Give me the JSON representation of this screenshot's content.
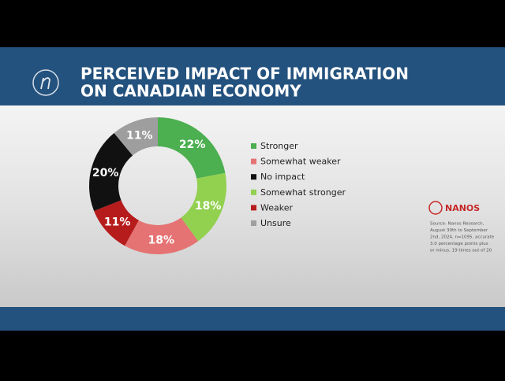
{
  "header": {
    "title_lines": [
      "PERCEIVED IMPACT OF IMMIGRATION",
      "ON CANADIAN ECONOMY"
    ]
  },
  "chart_data": {
    "type": "donut",
    "categories": [
      "Stronger",
      "Somewhat stronger",
      "Somewhat weaker",
      "Weaker",
      "No impact",
      "Unsure"
    ],
    "values": [
      22,
      18,
      18,
      11,
      20,
      11
    ],
    "value_labels": [
      "22%",
      "18%",
      "18%",
      "11%",
      "20%",
      "11%"
    ],
    "colors": [
      "#4caf50",
      "#92d050",
      "#e57373",
      "#b71c1c",
      "#111111",
      "#9e9e9e"
    ],
    "legend": [
      "Stronger",
      "Somewhat weaker",
      "No impact",
      "Somewhat stronger",
      "Weaker",
      "Unsure"
    ]
  },
  "branding": {
    "logo": "NANOS",
    "source": [
      "Source: Nanos Research,",
      "August 30th to September",
      "2nd, 2024, n=1095, accurate",
      "3.0 percentage points plus",
      "or minus, 19 times out of 20"
    ]
  }
}
